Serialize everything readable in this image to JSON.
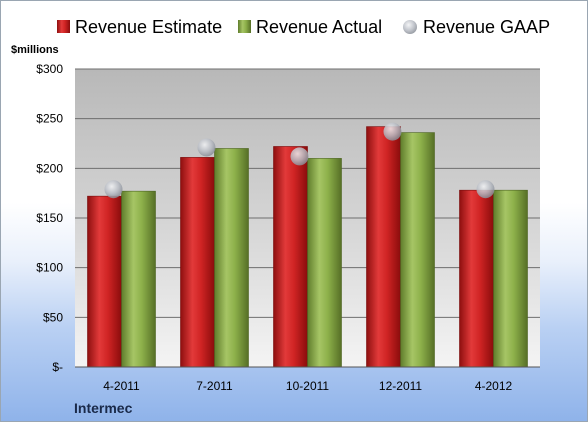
{
  "chart_data": {
    "type": "bar",
    "company": "Intermec",
    "ylabel": "$millions",
    "categories": [
      "4-2011",
      "7-2011",
      "10-2011",
      "12-2011",
      "4-2012"
    ],
    "series": [
      {
        "name": "Revenue Estimate",
        "kind": "bar",
        "color": "#d42a2a",
        "values": [
          172,
          211,
          222,
          242,
          178
        ]
      },
      {
        "name": "Revenue Actual",
        "kind": "bar",
        "color": "#8db04a",
        "values": [
          177,
          220,
          210,
          236,
          178
        ]
      },
      {
        "name": "Revenue GAAP",
        "kind": "marker",
        "color": "#b8bcc4",
        "values": [
          179,
          221,
          212,
          237,
          179
        ]
      }
    ],
    "ylim": [
      0,
      300
    ],
    "yticks": [
      0,
      50,
      100,
      150,
      200,
      250,
      300
    ],
    "ytick_labels": [
      "$-",
      "$50",
      "$100",
      "$150",
      "$200",
      "$250",
      "$300"
    ],
    "grid": true,
    "legend_position": "top"
  }
}
